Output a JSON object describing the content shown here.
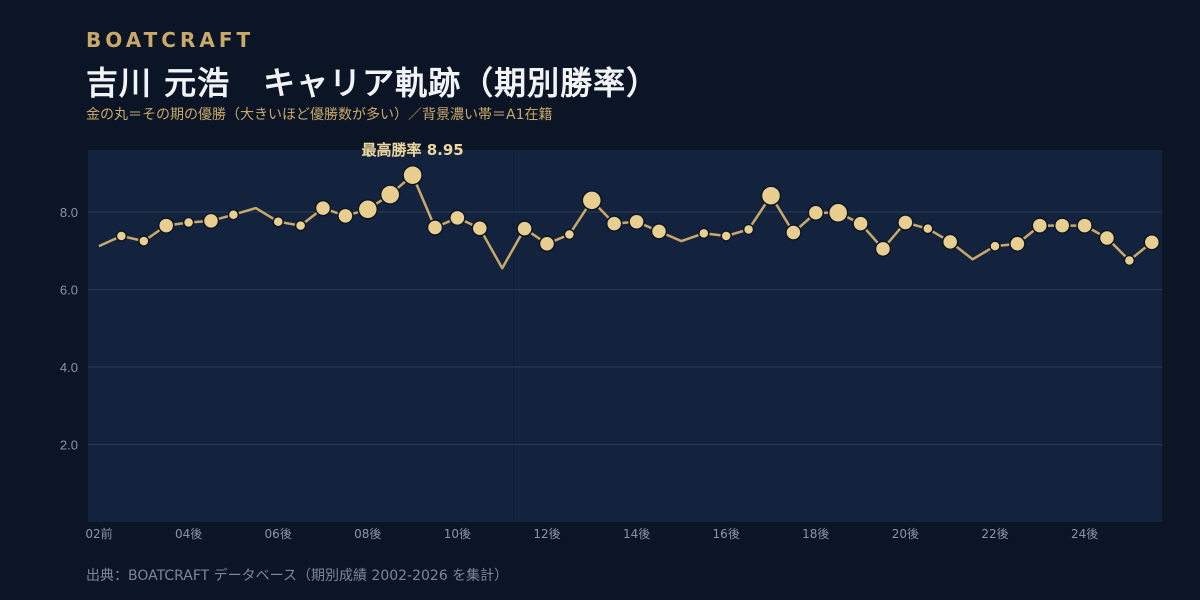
{
  "header": {
    "brand": "BOATCRAFT",
    "title": "吉川 元浩　キャリア軌跡（期別勝率）",
    "subtitle": "金の丸＝その期の優勝（大きいほど優勝数が多い）／背景濃い帯＝A1在籍"
  },
  "footer": {
    "source": "出典：BOATCRAFT データベース（期別成績 2002-2026 を集計）"
  },
  "colors": {
    "background": "#0b1526",
    "band": "#14233d",
    "line": "#c9a96a",
    "marker": "#e8cf8f",
    "brand": "#c9a96a"
  },
  "chart_data": {
    "type": "line",
    "title": "吉川 元浩　キャリア軌跡（期別勝率）",
    "ylabel": "",
    "xlabel": "",
    "ylim": [
      0,
      9.6
    ],
    "y_ticks": [
      "2.0",
      "4.0",
      "6.0",
      "8.0"
    ],
    "grid": true,
    "x_tick_labels": [
      "02前",
      "04後",
      "06後",
      "08後",
      "10後",
      "12後",
      "14後",
      "16後",
      "18後",
      "20後",
      "22後",
      "24後"
    ],
    "a1_bands": [
      [
        0,
        18
      ],
      [
        19,
        47
      ]
    ],
    "annotation": "最高勝率 8.95",
    "series": [
      {
        "values": [
          7.12,
          7.38,
          7.25,
          7.65,
          7.73,
          7.77,
          7.93,
          8.1,
          7.75,
          7.65,
          8.1,
          7.9,
          8.07,
          8.45,
          8.95,
          7.6,
          7.85,
          7.58,
          6.55,
          7.57,
          7.18,
          7.42,
          8.3,
          7.7,
          7.75,
          7.5,
          7.25,
          7.45,
          7.38,
          7.55,
          8.42,
          7.47,
          7.98,
          7.98,
          7.7,
          7.05,
          7.73,
          7.57,
          7.23,
          6.78,
          7.12,
          7.18,
          7.65,
          7.65,
          7.65,
          7.33,
          6.75,
          7.22
        ],
        "wins": [
          0,
          1,
          1,
          2,
          1,
          2,
          1,
          0,
          1,
          1,
          2,
          2,
          3,
          3,
          3,
          2,
          2,
          2,
          0,
          2,
          2,
          1,
          3,
          2,
          2,
          2,
          0,
          1,
          1,
          1,
          3,
          2,
          2,
          3,
          2,
          2,
          2,
          1,
          2,
          0,
          1,
          2,
          2,
          2,
          2,
          2,
          1,
          2
        ]
      }
    ]
  }
}
